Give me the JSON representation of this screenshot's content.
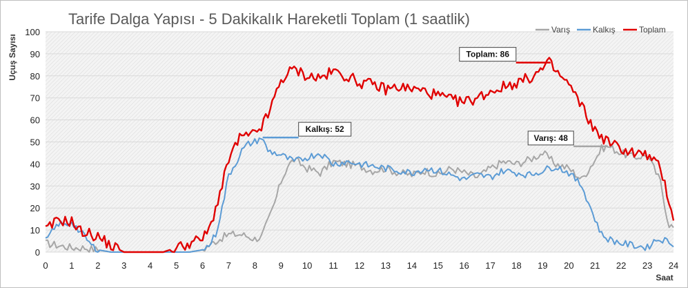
{
  "chart_data": {
    "type": "line",
    "title": "Tarife Dalga Yapısı - 5 Dakikalık Hareketli Toplam (1 saatlik)",
    "xlabel": "Saat",
    "ylabel": "Uçuş Sayısı",
    "xlim": [
      0,
      24
    ],
    "ylim": [
      0,
      100
    ],
    "x_ticks": [
      "0",
      "1",
      "2",
      "3",
      "4",
      "5",
      "6",
      "7",
      "8",
      "9",
      "10",
      "11",
      "12",
      "13",
      "14",
      "15",
      "16",
      "17",
      "18",
      "19",
      "20",
      "21",
      "22",
      "23",
      "24"
    ],
    "y_ticks": [
      "0",
      "10",
      "20",
      "30",
      "40",
      "50",
      "60",
      "70",
      "80",
      "90",
      "100"
    ],
    "grid": true,
    "legend_position": "top-right",
    "series": [
      {
        "name": "Varış",
        "color": "#a6a6a6",
        "x": [
          0,
          0.5,
          1,
          1.5,
          2,
          2.5,
          3,
          3.5,
          4,
          4.5,
          5,
          5.5,
          6,
          6.5,
          7,
          7.5,
          8,
          8.25,
          8.5,
          8.75,
          9,
          9.25,
          9.5,
          10,
          10.5,
          11,
          11.5,
          12,
          12.5,
          13,
          13.5,
          14,
          14.5,
          15,
          15.5,
          16,
          16.5,
          17,
          17.5,
          18,
          18.5,
          19,
          19.5,
          20,
          20.5,
          21,
          21.25,
          21.5,
          22,
          22.5,
          23,
          23.5,
          23.8,
          24
        ],
        "values": [
          4,
          3,
          2,
          2,
          1,
          0,
          0,
          0,
          0,
          0,
          0,
          0,
          1,
          5,
          8,
          8,
          6,
          7,
          14,
          22,
          32,
          39,
          42,
          38,
          36,
          41,
          40,
          39,
          37,
          38,
          36,
          35,
          37,
          35,
          38,
          36,
          34,
          38,
          41,
          40,
          42,
          45,
          40,
          38,
          33,
          42,
          47,
          48,
          45,
          43,
          44,
          32,
          13,
          11
        ]
      },
      {
        "name": "Kalkış",
        "color": "#5b9bd5",
        "x": [
          0,
          0.25,
          0.5,
          0.75,
          1,
          1.25,
          1.5,
          1.75,
          2,
          2.5,
          3,
          3.5,
          4,
          4.5,
          5,
          5.5,
          6,
          6.25,
          6.5,
          6.75,
          7,
          7.25,
          7.5,
          7.75,
          8,
          8.25,
          8.5,
          9,
          9.5,
          10,
          10.5,
          11,
          11.5,
          12,
          12.5,
          13,
          13.5,
          14,
          14.5,
          15,
          15.5,
          16,
          16.5,
          17,
          17.5,
          18,
          18.5,
          19,
          19.5,
          20,
          20.5,
          21,
          21.25,
          21.5,
          22,
          22.5,
          23,
          23.25,
          23.5,
          24
        ],
        "values": [
          5,
          9,
          13,
          12,
          14,
          10,
          7,
          3,
          1,
          0,
          0,
          0,
          0,
          0,
          0,
          0,
          1,
          3,
          8,
          20,
          35,
          40,
          46,
          49,
          50,
          52,
          46,
          44,
          41,
          43,
          45,
          40,
          41,
          40,
          39,
          38,
          37,
          36,
          38,
          37,
          35,
          33,
          35,
          34,
          37,
          36,
          35,
          37,
          39,
          36,
          30,
          15,
          8,
          6,
          4,
          3,
          2,
          5,
          6,
          4
        ]
      },
      {
        "name": "Toplam",
        "color": "#e00000",
        "x": [
          0,
          0.25,
          0.5,
          0.75,
          1,
          1.25,
          1.5,
          1.75,
          2,
          2.5,
          3,
          3.5,
          4,
          4.5,
          5,
          5.5,
          6,
          6.25,
          6.5,
          6.75,
          7,
          7.25,
          7.5,
          7.75,
          8,
          8.25,
          8.5,
          8.75,
          9,
          9.25,
          9.5,
          10,
          10.5,
          11,
          11.5,
          12,
          12.5,
          13,
          13.5,
          14,
          14.5,
          15,
          15.5,
          16,
          16.5,
          17,
          17.5,
          18,
          18.5,
          19,
          19.25,
          19.5,
          20,
          20.5,
          21,
          21.5,
          22,
          22.5,
          23,
          23.5,
          23.8,
          24
        ],
        "values": [
          10,
          12,
          15,
          14,
          14,
          10,
          9,
          8,
          7,
          3,
          0,
          0,
          0,
          0,
          2,
          4,
          6,
          10,
          20,
          30,
          42,
          48,
          53,
          52,
          54,
          57,
          62,
          70,
          78,
          81,
          83,
          80,
          79,
          82,
          80,
          77,
          76,
          74,
          75,
          74,
          73,
          71,
          69,
          68,
          70,
          73,
          75,
          77,
          79,
          83,
          86,
          82,
          76,
          66,
          55,
          50,
          47,
          45,
          44,
          38,
          25,
          15
        ]
      }
    ],
    "annotations": [
      {
        "text": "Kalkış: 52",
        "series": "Kalkış",
        "x": 8.3,
        "y": 52
      },
      {
        "text": "Varış: 48",
        "series": "Varış",
        "x": 21.5,
        "y": 48
      },
      {
        "text": "Toplam: 86",
        "series": "Toplam",
        "x": 19.3,
        "y": 86
      }
    ],
    "colors": {
      "plot_background": "#f2f2f2",
      "gridline": "#d9d9d9",
      "frame": "#bfbfbf",
      "title": "#595959"
    }
  }
}
